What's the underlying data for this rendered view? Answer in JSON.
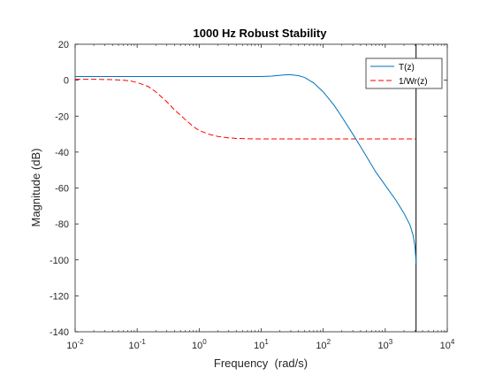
{
  "chart_data": {
    "type": "line",
    "title": "1000 Hz Robust Stability",
    "xlabel": "Frequency  (rad/s)",
    "ylabel": "Magnitude (dB)",
    "xscale": "log",
    "xlim": [
      0.01,
      10000
    ],
    "ylim": [
      -140,
      20
    ],
    "x_ticks": [
      {
        "value": 0.01,
        "base": "10",
        "exp": "-2"
      },
      {
        "value": 0.1,
        "base": "10",
        "exp": "-1"
      },
      {
        "value": 1,
        "base": "10",
        "exp": "0"
      },
      {
        "value": 10,
        "base": "10",
        "exp": "1"
      },
      {
        "value": 100,
        "base": "10",
        "exp": "2"
      },
      {
        "value": 1000,
        "base": "10",
        "exp": "3"
      },
      {
        "value": 10000,
        "base": "10",
        "exp": "4"
      }
    ],
    "y_ticks": [
      20,
      0,
      -20,
      -40,
      -60,
      -80,
      -100,
      -120,
      -140
    ],
    "grid": false,
    "legend_position": "top-right",
    "vertical_line_x": 3141.6,
    "series": [
      {
        "name": "T(z)",
        "color": "#0072BD",
        "style": "solid",
        "x": [
          0.01,
          0.1,
          1,
          10,
          15,
          20,
          25,
          30,
          40,
          50,
          70,
          100,
          150,
          200,
          300,
          400,
          500,
          700,
          1000,
          1500,
          2000,
          2500,
          2800,
          3000,
          3100,
          3141.6
        ],
        "y": [
          2,
          2,
          2,
          2,
          2.3,
          2.7,
          3,
          3,
          2.5,
          1.5,
          -1.5,
          -6.5,
          -14,
          -20.5,
          -30,
          -37,
          -42.5,
          -51,
          -58.5,
          -67,
          -74,
          -80.5,
          -86,
          -92,
          -98,
          -102
        ]
      },
      {
        "name": "1/Wr(z)",
        "color": "#ff0000",
        "style": "dashed",
        "x": [
          0.01,
          0.02,
          0.04,
          0.06,
          0.08,
          0.1,
          0.15,
          0.2,
          0.3,
          0.4,
          0.6,
          0.8,
          1,
          1.5,
          2,
          3,
          4,
          6,
          10,
          30,
          100,
          3141.6
        ],
        "y": [
          0.5,
          0.5,
          0.3,
          0,
          -0.5,
          -1.3,
          -3.5,
          -6.5,
          -12,
          -16.5,
          -22,
          -25.8,
          -28,
          -30.3,
          -31.3,
          -32.1,
          -32.4,
          -32.6,
          -32.7,
          -32.7,
          -32.7,
          -32.7
        ]
      }
    ]
  }
}
